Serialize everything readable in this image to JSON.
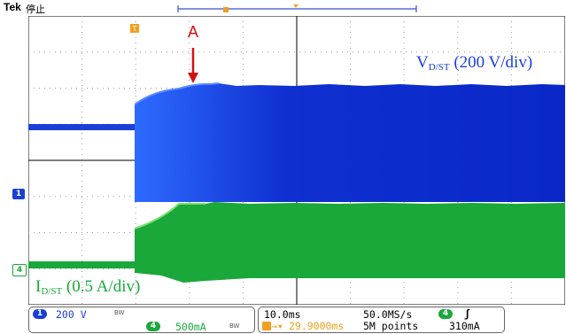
{
  "header": {
    "brand": "Tek",
    "status": "停止"
  },
  "annotations": {
    "marker": "A",
    "voltage_symbol": "V",
    "voltage_subscript": "D/ST",
    "voltage_scale": "(200 V/div)",
    "current_symbol": "I",
    "current_subscript": "D/ST",
    "current_scale": "(0.5 A/div)"
  },
  "channels": {
    "ch1": {
      "number": "1",
      "scale": "200 V",
      "bw": "BW",
      "color": "#1b3fd6"
    },
    "ch4": {
      "number": "4",
      "scale": "500mA",
      "bw": "BW",
      "color": "#1aa83a"
    }
  },
  "timebase": {
    "horizontal_scale": "10.0ms",
    "sample_rate": "50.0MS/s",
    "trigger_position": "29.9000ms",
    "record_length": "5M points"
  },
  "trigger": {
    "channel": "4",
    "slope_icon": "rising-edge-icon",
    "slope": "ʃ",
    "level": "310mA"
  },
  "markers": {
    "trigger_marker": "T",
    "ch1_marker": "1",
    "ch4_marker": "4"
  },
  "colors": {
    "ch1": "#1b3fd6",
    "ch4": "#1aa83a",
    "trigger": "#f0a020",
    "annotation": "#d11111"
  }
}
